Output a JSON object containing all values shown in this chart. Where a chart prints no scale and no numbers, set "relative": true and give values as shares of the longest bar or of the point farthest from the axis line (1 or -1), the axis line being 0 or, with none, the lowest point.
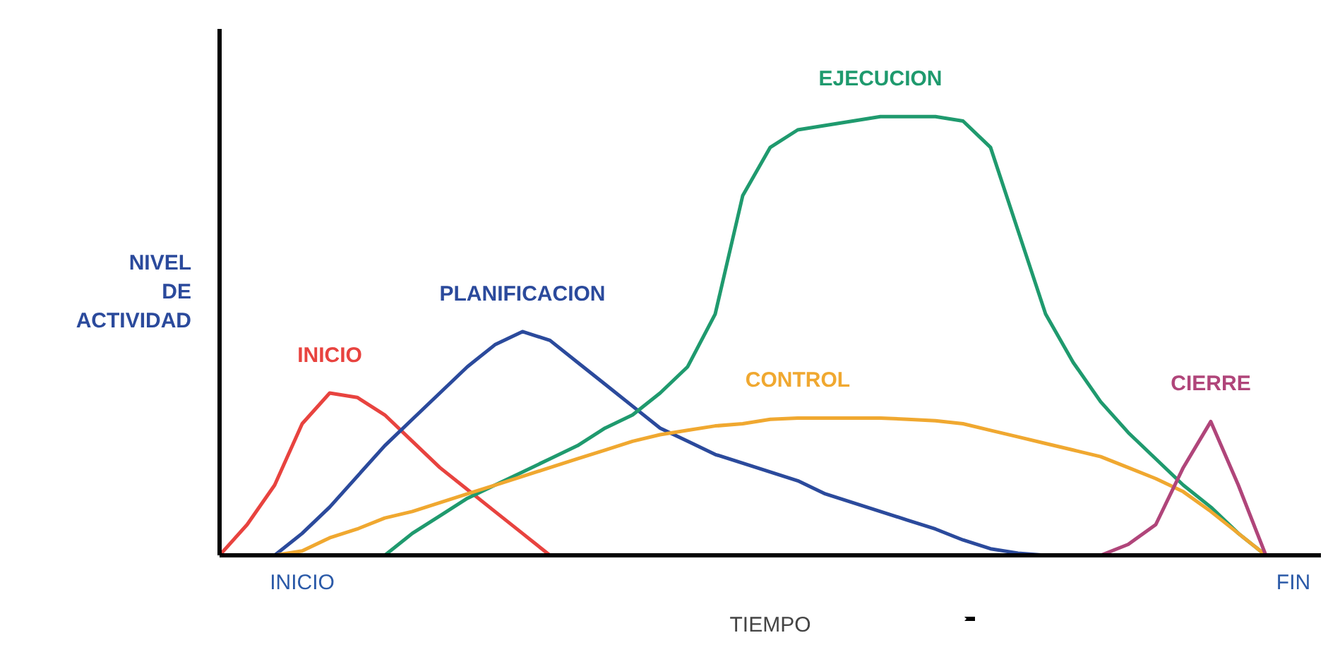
{
  "chart_data": {
    "type": "line",
    "relative": true,
    "xlabel": "TIEMPO",
    "ylabel": "NIVEL DE ACTIVIDAD",
    "categories": [
      null,
      null,
      null,
      "INICIO",
      null,
      null,
      null,
      null,
      null,
      null,
      null,
      null,
      null,
      null,
      null,
      null,
      null,
      null,
      null,
      null,
      null,
      null,
      null,
      null,
      null,
      null,
      null,
      null,
      null,
      null,
      null,
      null,
      null,
      null,
      null,
      null,
      null,
      null,
      null,
      "FIN",
      null
    ],
    "grid": false,
    "marker": "none",
    "line_style": "solid",
    "series": [
      {
        "name": "INICIO",
        "color": "#e8433f",
        "values": [
          0,
          0.07,
          0.16,
          0.3,
          0.37,
          0.36,
          0.32,
          0.26,
          0.2,
          0.15,
          0.1,
          0.05,
          0,
          null,
          null,
          null,
          null,
          null,
          null,
          null,
          null,
          null,
          null,
          null,
          null,
          null,
          null,
          null,
          null,
          null,
          null,
          null,
          null,
          null,
          null,
          null,
          null,
          null,
          null,
          null,
          null
        ]
      },
      {
        "name": "PLANIFICACION",
        "color": "#2b4a9c",
        "values": [
          null,
          null,
          0,
          0.05,
          0.11,
          0.18,
          0.25,
          0.31,
          0.37,
          0.43,
          0.48,
          0.51,
          0.49,
          0.44,
          0.39,
          0.34,
          0.29,
          0.26,
          0.23,
          0.21,
          0.19,
          0.17,
          0.14,
          0.12,
          0.1,
          0.08,
          0.06,
          0.035,
          0.015,
          0.005,
          0,
          null,
          null,
          null,
          null,
          null,
          null,
          null,
          null,
          null,
          null
        ]
      },
      {
        "name": "EJECUCION",
        "color": "#1f9a6e",
        "values": [
          null,
          null,
          null,
          null,
          null,
          null,
          0,
          0.05,
          0.09,
          0.13,
          0.16,
          0.19,
          0.22,
          0.25,
          0.29,
          0.32,
          0.37,
          0.43,
          0.55,
          0.82,
          0.93,
          0.97,
          0.98,
          0.99,
          1,
          1,
          1,
          0.99,
          0.93,
          0.74,
          0.55,
          0.44,
          0.35,
          0.28,
          0.22,
          0.16,
          0.11,
          0.05,
          0,
          null,
          null
        ]
      },
      {
        "name": "CONTROL",
        "color": "#f0a830",
        "values": [
          null,
          null,
          0,
          0.01,
          0.04,
          0.06,
          0.085,
          0.1,
          0.12,
          0.14,
          0.16,
          0.18,
          0.2,
          0.22,
          0.24,
          0.26,
          0.275,
          0.285,
          0.295,
          0.3,
          0.31,
          0.313,
          0.313,
          0.313,
          0.313,
          0.31,
          0.307,
          0.3,
          0.285,
          0.27,
          0.255,
          0.24,
          0.225,
          0.2,
          0.175,
          0.145,
          0.1,
          0.05,
          0,
          null,
          null
        ]
      },
      {
        "name": "CIERRE",
        "color": "#b0457a",
        "values": [
          null,
          null,
          null,
          null,
          null,
          null,
          null,
          null,
          null,
          null,
          null,
          null,
          null,
          null,
          null,
          null,
          null,
          null,
          null,
          null,
          null,
          null,
          null,
          null,
          null,
          null,
          null,
          null,
          null,
          null,
          null,
          null,
          0,
          0.025,
          0.07,
          0.2,
          0.305,
          0.16,
          0,
          null,
          null
        ]
      }
    ]
  }
}
